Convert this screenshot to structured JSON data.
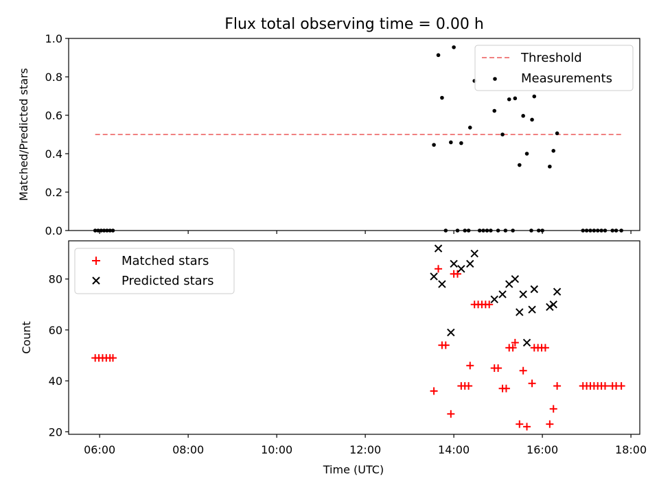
{
  "chart_data": [
    {
      "type": "scatter",
      "title": "Flux total observing time = 0.00 h",
      "xlabel": "",
      "ylabel": "Matched/Predicted stars",
      "xlim": [
        "05:18",
        "18:12"
      ],
      "ylim": [
        0,
        1.0
      ],
      "y_ticks": [
        "0.0",
        "0.2",
        "0.4",
        "0.6",
        "0.8",
        "1.0"
      ],
      "legend_position": "top-right",
      "threshold": {
        "name": "Threshold",
        "value": 0.5,
        "x_range": [
          "05:54",
          "17:48"
        ],
        "color": "#f08080",
        "style": "dashed"
      },
      "series": [
        {
          "name": "Measurements",
          "color": "#000000",
          "marker": "dot",
          "points": [
            [
              "05:54",
              0.0
            ],
            [
              "05:58",
              0.0
            ],
            [
              "06:02",
              0.0
            ],
            [
              "06:06",
              0.0
            ],
            [
              "06:10",
              0.0
            ],
            [
              "06:14",
              0.0
            ],
            [
              "06:18",
              0.0
            ],
            [
              "13:33",
              0.446
            ],
            [
              "13:39",
              0.913
            ],
            [
              "13:44",
              0.691
            ],
            [
              "13:56",
              0.459
            ],
            [
              "14:00",
              0.954
            ],
            [
              "14:10",
              0.455
            ],
            [
              "14:22",
              0.536
            ],
            [
              "14:28",
              0.779
            ],
            [
              "14:55",
              0.623
            ],
            [
              "15:06",
              0.5
            ],
            [
              "15:15",
              0.683
            ],
            [
              "15:23",
              0.688
            ],
            [
              "15:29",
              0.341
            ],
            [
              "15:34",
              0.597
            ],
            [
              "15:39",
              0.4
            ],
            [
              "15:46",
              0.577
            ],
            [
              "15:49",
              0.698
            ],
            [
              "16:10",
              0.333
            ],
            [
              "16:15",
              0.415
            ],
            [
              "16:20",
              0.506
            ],
            [
              "13:49",
              0.0
            ],
            [
              "14:05",
              0.0
            ],
            [
              "14:15",
              0.0
            ],
            [
              "14:20",
              0.0
            ],
            [
              "14:35",
              0.0
            ],
            [
              "14:40",
              0.0
            ],
            [
              "14:45",
              0.0
            ],
            [
              "14:50",
              0.0
            ],
            [
              "15:00",
              0.0
            ],
            [
              "15:10",
              0.0
            ],
            [
              "15:20",
              0.0
            ],
            [
              "15:45",
              0.0
            ],
            [
              "15:55",
              0.0
            ],
            [
              "16:00",
              0.0
            ],
            [
              "16:55",
              0.0
            ],
            [
              "17:00",
              0.0
            ],
            [
              "17:05",
              0.0
            ],
            [
              "17:10",
              0.0
            ],
            [
              "17:15",
              0.0
            ],
            [
              "17:20",
              0.0
            ],
            [
              "17:25",
              0.0
            ],
            [
              "17:35",
              0.0
            ],
            [
              "17:40",
              0.0
            ],
            [
              "17:47",
              0.0
            ]
          ]
        }
      ]
    },
    {
      "type": "scatter",
      "xlabel": "Time (UTC)",
      "ylabel": "Count",
      "xlim": [
        "05:18",
        "18:12"
      ],
      "ylim": [
        19,
        95
      ],
      "x_ticks": [
        "06:00",
        "08:00",
        "10:00",
        "12:00",
        "14:00",
        "16:00",
        "18:00"
      ],
      "y_ticks": [
        "20",
        "40",
        "60",
        "80"
      ],
      "legend_position": "top-left",
      "series": [
        {
          "name": "Matched stars",
          "color": "#ff0000",
          "marker": "plus",
          "points": [
            [
              "05:54",
              49
            ],
            [
              "05:59",
              49
            ],
            [
              "06:04",
              49
            ],
            [
              "06:09",
              49
            ],
            [
              "06:14",
              49
            ],
            [
              "06:18",
              49
            ],
            [
              "13:33",
              36
            ],
            [
              "13:39",
              84
            ],
            [
              "13:44",
              54
            ],
            [
              "13:49",
              54
            ],
            [
              "13:56",
              27
            ],
            [
              "14:00",
              82
            ],
            [
              "14:05",
              82
            ],
            [
              "14:10",
              38
            ],
            [
              "14:15",
              38
            ],
            [
              "14:20",
              38
            ],
            [
              "14:22",
              46
            ],
            [
              "14:28",
              70
            ],
            [
              "14:33",
              70
            ],
            [
              "14:38",
              70
            ],
            [
              "14:43",
              70
            ],
            [
              "14:48",
              70
            ],
            [
              "14:55",
              45
            ],
            [
              "15:00",
              45
            ],
            [
              "15:06",
              37
            ],
            [
              "15:11",
              37
            ],
            [
              "15:15",
              53
            ],
            [
              "15:20",
              53
            ],
            [
              "15:23",
              55
            ],
            [
              "15:29",
              23
            ],
            [
              "15:34",
              44
            ],
            [
              "15:39",
              22
            ],
            [
              "15:46",
              39
            ],
            [
              "15:49",
              53
            ],
            [
              "15:54",
              53
            ],
            [
              "15:59",
              53
            ],
            [
              "16:04",
              53
            ],
            [
              "16:10",
              23
            ],
            [
              "16:15",
              29
            ],
            [
              "16:20",
              38
            ],
            [
              "16:55",
              38
            ],
            [
              "17:00",
              38
            ],
            [
              "17:05",
              38
            ],
            [
              "17:10",
              38
            ],
            [
              "17:15",
              38
            ],
            [
              "17:20",
              38
            ],
            [
              "17:25",
              38
            ],
            [
              "17:35",
              38
            ],
            [
              "17:40",
              38
            ],
            [
              "17:47",
              38
            ]
          ]
        },
        {
          "name": "Predicted stars",
          "color": "#000000",
          "marker": "x",
          "points": [
            [
              "13:33",
              81
            ],
            [
              "13:39",
              92
            ],
            [
              "13:44",
              78
            ],
            [
              "13:56",
              59
            ],
            [
              "14:00",
              86
            ],
            [
              "14:10",
              84
            ],
            [
              "14:22",
              86
            ],
            [
              "14:28",
              90
            ],
            [
              "14:55",
              72
            ],
            [
              "15:06",
              74
            ],
            [
              "15:15",
              78
            ],
            [
              "15:23",
              80
            ],
            [
              "15:29",
              67
            ],
            [
              "15:34",
              74
            ],
            [
              "15:39",
              55
            ],
            [
              "15:46",
              68
            ],
            [
              "15:49",
              76
            ],
            [
              "16:10",
              69
            ],
            [
              "16:15",
              70
            ],
            [
              "16:20",
              75
            ]
          ]
        }
      ]
    }
  ]
}
